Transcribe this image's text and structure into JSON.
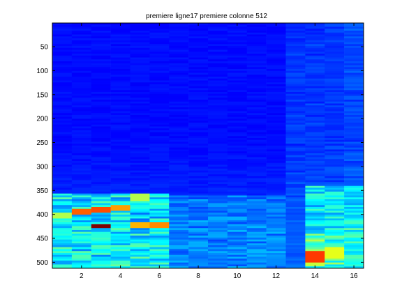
{
  "chart_data": {
    "type": "heatmap",
    "title": "premiere ligne17 premiere colonne 512",
    "xlabel": "",
    "ylabel": "",
    "xlim": [
      0.5,
      16.5
    ],
    "ylim": [
      0.5,
      512.5
    ],
    "y_reversed": true,
    "colormap": "jet",
    "columns": [
      1,
      2,
      3,
      4,
      5,
      6,
      7,
      8,
      9,
      10,
      11,
      12,
      13,
      14,
      15,
      16
    ],
    "rows": 512,
    "x_ticks": [
      2,
      4,
      6,
      8,
      10,
      12,
      14,
      16
    ],
    "y_ticks": [
      50,
      100,
      150,
      200,
      250,
      300,
      350,
      400,
      450,
      500
    ],
    "grid": false,
    "hotspots": [
      {
        "col": 3,
        "row_start": 424,
        "row_end": 428,
        "value": 1.0
      },
      {
        "col": 2,
        "row_start": 392,
        "row_end": 398,
        "value": 0.78
      },
      {
        "col": 3,
        "row_start": 388,
        "row_end": 393,
        "value": 0.8
      },
      {
        "col": 4,
        "row_start": 382,
        "row_end": 390,
        "value": 0.72
      },
      {
        "col": 5,
        "row_start": 420,
        "row_end": 425,
        "value": 0.7
      },
      {
        "col": 6,
        "row_start": 418,
        "row_end": 426,
        "value": 0.74
      },
      {
        "col": 14,
        "row_start": 478,
        "row_end": 500,
        "value": 0.82
      },
      {
        "col": 15,
        "row_start": 470,
        "row_end": 490,
        "value": 0.6
      },
      {
        "col": 1,
        "row_start": 400,
        "row_end": 406,
        "value": 0.55
      },
      {
        "col": 5,
        "row_start": 360,
        "row_end": 370,
        "value": 0.55
      }
    ]
  }
}
